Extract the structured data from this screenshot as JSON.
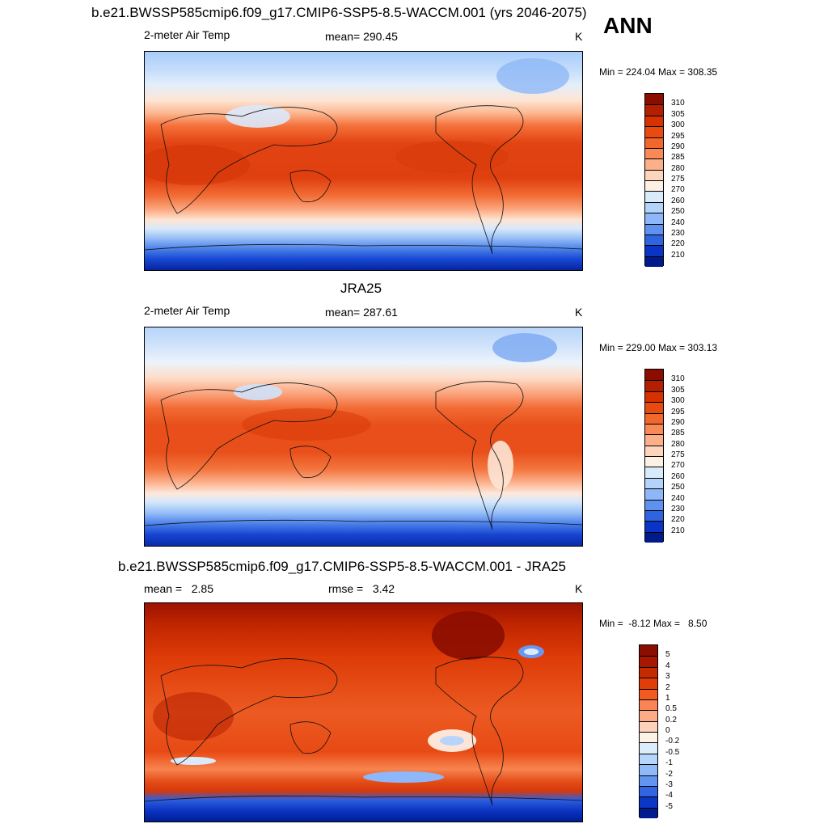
{
  "panel1": {
    "title": "b.e21.BWSSP585cmip6.f09_g17.CMIP6-SSP5-8.5-WACCM.001 (yrs 2046-2075)",
    "season": "ANN",
    "variable": "2-meter Air Temp",
    "mean": "mean= 290.45",
    "units": "K",
    "minmax": "Min = 224.04 Max = 308.35"
  },
  "panel2": {
    "title": "JRA25",
    "variable": "2-meter Air Temp",
    "mean": "mean= 287.61",
    "units": "K",
    "minmax": "Min = 229.00 Max = 303.13"
  },
  "panel3": {
    "title": "b.e21.BWSSP585cmip6.f09_g17.CMIP6-SSP5-8.5-WACCM.001 - JRA25",
    "mean": "mean =   2.85",
    "rmse": "rmse =   3.42",
    "units": "K",
    "minmax": "Min =  -8.12 Max =   8.50"
  },
  "colorbar_abs": {
    "labels": [
      "310",
      "305",
      "300",
      "295",
      "290",
      "285",
      "280",
      "275",
      "270",
      "260",
      "250",
      "240",
      "230",
      "220",
      "210"
    ],
    "colors": [
      "#8b0d00",
      "#b31f00",
      "#d63200",
      "#e84a10",
      "#f2672c",
      "#f98a55",
      "#fcb08a",
      "#fdd5bd",
      "#fdf1e4",
      "#d9ebfb",
      "#b4d3fb",
      "#8db7f8",
      "#5f92ef",
      "#2f63e0",
      "#0a35c4",
      "#001a8c"
    ]
  },
  "colorbar_diff": {
    "labels": [
      "5",
      "4",
      "3",
      "2",
      "1",
      "0.5",
      "0.2",
      "0",
      "-0.2",
      "-0.5",
      "-1",
      "-2",
      "-3",
      "-4",
      "-5"
    ],
    "colors": [
      "#8b0d00",
      "#a81800",
      "#c62a00",
      "#df3e08",
      "#f15a20",
      "#f98456",
      "#fcab86",
      "#fdd2bb",
      "#fef1e5",
      "#dbedfb",
      "#b6d5fb",
      "#8fb9f8",
      "#6195ef",
      "#3266e0",
      "#0a37c5",
      "#001b8e"
    ]
  }
}
